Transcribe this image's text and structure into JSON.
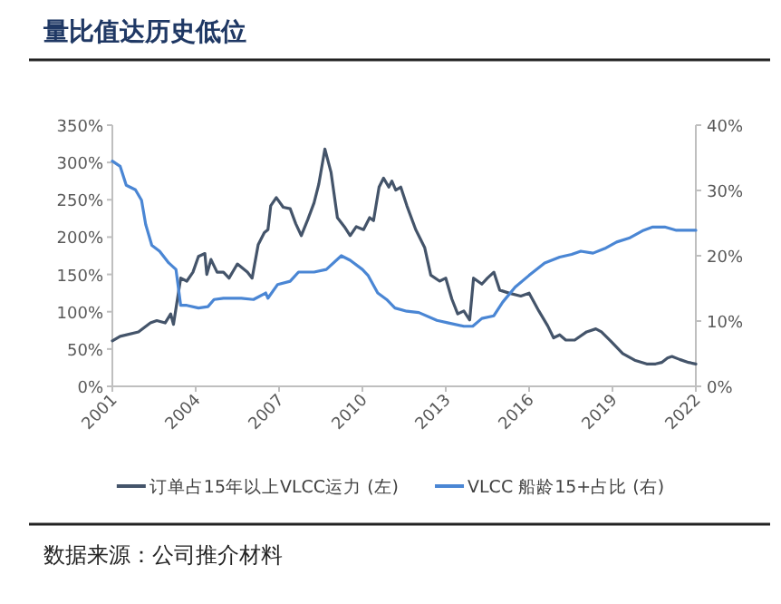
{
  "chart_data": {
    "type": "line",
    "title": "量比值达历史低位",
    "annotations": [
      "数据来源：公司推介材料"
    ],
    "xlim": [
      2001,
      2022
    ],
    "xticks": [
      2001,
      2004,
      2007,
      2010,
      2013,
      2016,
      2019,
      2022
    ],
    "ylim": [
      0,
      350
    ],
    "yticks": [
      {
        "value": 0,
        "label": "0%"
      },
      {
        "value": 50,
        "label": "50%"
      },
      {
        "value": 100,
        "label": "100%"
      },
      {
        "value": 150,
        "label": "150%"
      },
      {
        "value": 200,
        "label": "200%"
      },
      {
        "value": 250,
        "label": "250%"
      },
      {
        "value": 300,
        "label": "300%"
      },
      {
        "value": 350,
        "label": "350%"
      }
    ],
    "y2lim": [
      0,
      40
    ],
    "y2ticks": [
      {
        "value": 0,
        "label": "0%"
      },
      {
        "value": 10,
        "label": "10%"
      },
      {
        "value": 20,
        "label": "20%"
      },
      {
        "value": 30,
        "label": "30%"
      },
      {
        "value": 40,
        "label": "40%"
      }
    ],
    "legend": "bottom",
    "series": [
      {
        "name": "订单占15年以上VLCC运力 (左)",
        "color": "#44546a",
        "x": [
          2001,
          2001.28,
          2001.94,
          2002.37,
          2002.6,
          2002.9,
          2003.1,
          2003.2,
          2003.46,
          2003.68,
          2003.9,
          2004.1,
          2004.33,
          2004.4,
          2004.55,
          2004.77,
          2005,
          2005.2,
          2005.5,
          2005.86,
          2006.03,
          2006.25,
          2006.47,
          2006.6,
          2006.7,
          2006.9,
          2007.15,
          2007.4,
          2007.6,
          2007.8,
          2008.04,
          2008.26,
          2008.43,
          2008.65,
          2008.87,
          2009.1,
          2009.35,
          2009.56,
          2009.78,
          2010.04,
          2010.26,
          2010.4,
          2010.6,
          2010.76,
          2010.95,
          2011.06,
          2011.2,
          2011.38,
          2011.6,
          2011.92,
          2012.24,
          2012.46,
          2012.78,
          2013,
          2013.22,
          2013.43,
          2013.65,
          2013.86,
          2014,
          2014.3,
          2014.5,
          2014.73,
          2014.94,
          2015.27,
          2015.7,
          2016,
          2016.35,
          2016.67,
          2016.88,
          2017.1,
          2017.32,
          2017.64,
          2018.07,
          2018.4,
          2018.6,
          2018.93,
          2019.37,
          2019.8,
          2020.23,
          2020.55,
          2020.77,
          2020.98,
          2021.14,
          2021.42,
          2021.74,
          2022
        ],
        "values": [
          61,
          67,
          73,
          85,
          88,
          85,
          97,
          83,
          145,
          141,
          153,
          174,
          178,
          150,
          170,
          153,
          153,
          145,
          164,
          153,
          145,
          190,
          206,
          210,
          242,
          253,
          240,
          238,
          218,
          202,
          224,
          246,
          271,
          318,
          287,
          226,
          214,
          202,
          214,
          210,
          226,
          222,
          267,
          279,
          267,
          275,
          263,
          267,
          242,
          210,
          186,
          149,
          141,
          145,
          117,
          97,
          101,
          89,
          145,
          137,
          145,
          153,
          129,
          125,
          121,
          125,
          101,
          81,
          65,
          69,
          62,
          62,
          73,
          77,
          73,
          61,
          44,
          35,
          30,
          30,
          32,
          38,
          40,
          36,
          32,
          30
        ]
      },
      {
        "name": "VLCC 船龄15+占比 (右)",
        "color": "#4a86d4",
        "axis": "y2",
        "x": [
          2001,
          2001.28,
          2001.5,
          2001.83,
          2002.05,
          2002.2,
          2002.42,
          2002.7,
          2003.03,
          2003.29,
          2003.46,
          2003.68,
          2004.1,
          2004.44,
          2004.66,
          2005,
          2005.64,
          2006.08,
          2006.52,
          2006.6,
          2006.95,
          2007.4,
          2007.7,
          2008.26,
          2008.7,
          2009.24,
          2009.56,
          2010,
          2010.2,
          2010.55,
          2010.87,
          2011.17,
          2011.6,
          2012.03,
          2012.68,
          2013.1,
          2013.65,
          2013.97,
          2014.3,
          2014.73,
          2015.05,
          2015.5,
          2016,
          2016.56,
          2017.1,
          2017.53,
          2017.86,
          2018.3,
          2018.72,
          2019.15,
          2019.6,
          2020.12,
          2020.45,
          2020.88,
          2021.3,
          2022
        ],
        "values": [
          34.5,
          33.7,
          30.8,
          30.1,
          28.5,
          24.8,
          21.6,
          20.7,
          18.9,
          17.9,
          12.4,
          12.4,
          12,
          12.2,
          13.3,
          13.5,
          13.5,
          13.3,
          14.3,
          13.5,
          15.6,
          16.1,
          17.5,
          17.5,
          17.9,
          20,
          19.3,
          17.9,
          17,
          14.3,
          13.3,
          12,
          11.5,
          11.3,
          10.1,
          9.7,
          9.2,
          9.2,
          10.4,
          10.8,
          12.9,
          15.2,
          17,
          18.9,
          19.8,
          20.2,
          20.7,
          20.4,
          21.1,
          22.1,
          22.7,
          23.9,
          24.4,
          24.4,
          23.9,
          23.9
        ]
      }
    ]
  }
}
